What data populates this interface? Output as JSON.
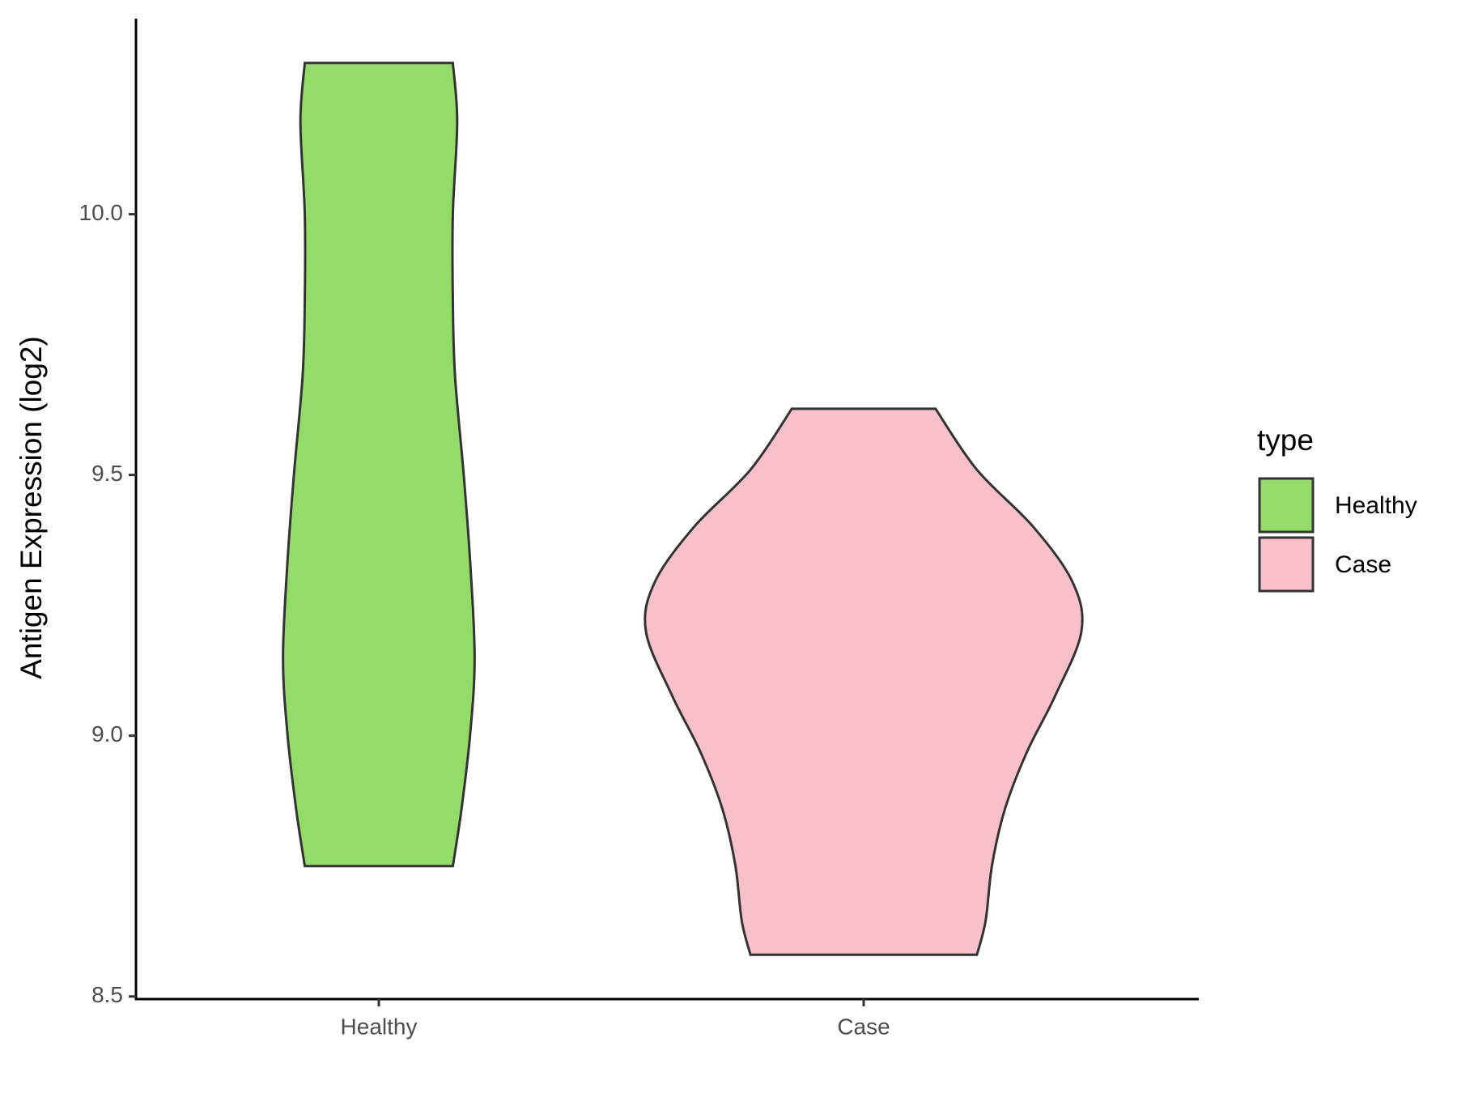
{
  "chart_data": {
    "type": "violin",
    "y_label": "Antigen Expression (log2)",
    "categories": [
      "Healthy",
      "Case"
    ],
    "ylim": [
      8.495,
      10.375
    ],
    "yticks": [
      {
        "value": 8.5,
        "label": "8.5"
      },
      {
        "value": 9,
        "label": "9.0"
      },
      {
        "value": 9.5,
        "label": "9.5"
      },
      {
        "value": 10,
        "label": "10.0"
      }
    ],
    "grid": false,
    "legend": {
      "title": "type",
      "position": "right"
    },
    "series": [
      {
        "name": "Healthy",
        "color": "#93dc6a",
        "y": [
          10.29,
          10.177,
          10.0,
          9.834,
          9.69,
          9.5,
          9.33,
          9.15,
          9.005,
          8.86,
          8.75
        ],
        "width": [
          0.34,
          0.36,
          0.34,
          0.34,
          0.35,
          0.39,
          0.42,
          0.44,
          0.42,
          0.38,
          0.34
        ]
      },
      {
        "name": "Case",
        "color": "#f7c0cb",
        "y": [
          9.627,
          9.51,
          9.4,
          9.294,
          9.2,
          9.077,
          8.969,
          8.861,
          8.753,
          8.645,
          8.58
        ],
        "width": [
          0.33,
          0.52,
          0.78,
          0.96,
          1.0,
          0.88,
          0.75,
          0.65,
          0.59,
          0.56,
          0.52
        ]
      }
    ]
  }
}
